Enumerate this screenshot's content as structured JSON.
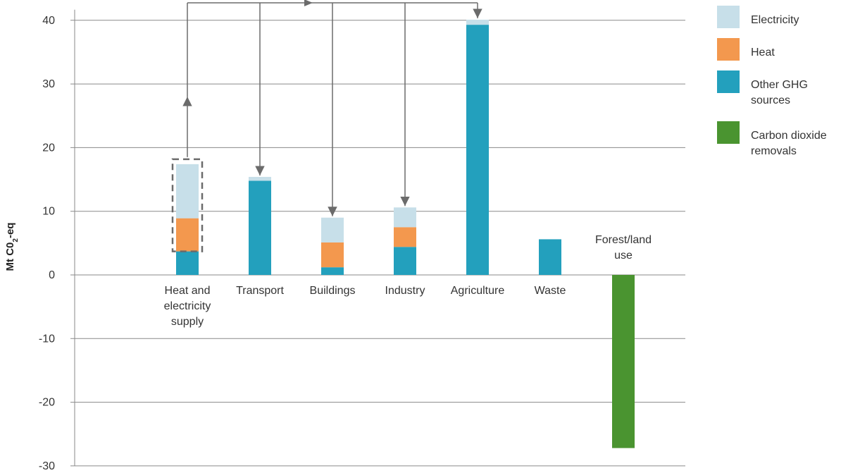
{
  "chart_data": {
    "type": "bar",
    "stacked": true,
    "ylabel": "Mt C0₂-eq",
    "ylabel_main": "Mt C0",
    "ylabel_sub": "2",
    "ylabel_tail": "-eq",
    "ylim": [
      -30,
      40
    ],
    "yticks": [
      -30,
      -20,
      -10,
      0,
      10,
      20,
      30,
      40
    ],
    "grid": true,
    "legend_position": "top-right",
    "categories": [
      [
        "Heat and",
        "electricity",
        "supply"
      ],
      [
        "Transport"
      ],
      [
        "Buildings"
      ],
      [
        "Industry"
      ],
      [
        "Agriculture"
      ],
      [
        "Waste"
      ],
      [
        "Forest/land",
        "use"
      ]
    ],
    "series": [
      {
        "name": "Other GHG sources",
        "legend_lines": [
          "Other GHG",
          "sources"
        ],
        "color": "#23a0bd",
        "values": [
          3.7,
          14.8,
          1.2,
          4.4,
          39.3,
          5.6,
          0
        ]
      },
      {
        "name": "Heat",
        "legend_lines": [
          "Heat"
        ],
        "color": "#f3984e",
        "values": [
          5.2,
          0,
          3.9,
          3.1,
          0,
          0,
          0
        ]
      },
      {
        "name": "Electricity",
        "legend_lines": [
          "Electricity"
        ],
        "color": "#c7dfe9",
        "values": [
          8.5,
          0.6,
          3.9,
          3.1,
          0.8,
          0,
          0
        ]
      },
      {
        "name": "Carbon dioxide removals",
        "legend_lines": [
          "Carbon dioxide",
          "removals"
        ],
        "color": "#4a9430",
        "values": [
          0,
          0,
          0,
          0,
          0,
          0,
          -27.2
        ]
      }
    ],
    "legend_order": [
      "Electricity",
      "Heat",
      "Other GHG sources",
      "Carbon dioxide removals"
    ],
    "annotations": {
      "highlight_box_category": "Heat and electricity supply",
      "arrow_targets": [
        "Transport",
        "Buildings",
        "Industry",
        "Agriculture"
      ]
    }
  }
}
